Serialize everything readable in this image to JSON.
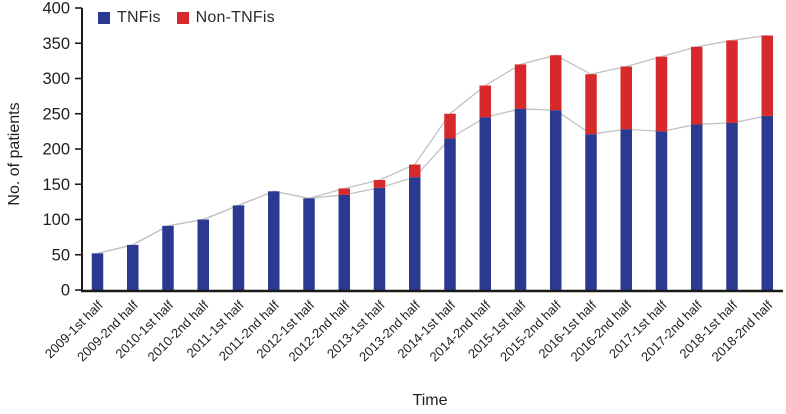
{
  "chart_data": {
    "type": "bar",
    "stacked": true,
    "xlabel": "Time",
    "ylabel": "No. of patients",
    "ylim": [
      0,
      400
    ],
    "ytick_step": 50,
    "grid": false,
    "legend_position": "top-left-inside",
    "categories": [
      "2009-1st half",
      "2009-2nd half",
      "2010-1st half",
      "2010-2nd half",
      "2011-1st half",
      "2011-2nd half",
      "2012-1st half",
      "2012-2nd half",
      "2013-1st half",
      "2013-2nd half",
      "2014-1st half",
      "2014-2nd half",
      "2015-1st half",
      "2015-2nd half",
      "2016-1st half",
      "2016-2nd half",
      "2017-1st half",
      "2017-2nd half",
      "2018-1st half",
      "2018-2nd half"
    ],
    "series": [
      {
        "name": "TNFis",
        "color": "#2b3990",
        "values": [
          52,
          64,
          91,
          100,
          120,
          140,
          130,
          135,
          145,
          160,
          215,
          245,
          257,
          255,
          221,
          228,
          225,
          235,
          237,
          247
        ]
      },
      {
        "name": "Non-TNFis",
        "color": "#d7282c",
        "values": [
          0,
          0,
          0,
          0,
          0,
          0,
          0,
          9,
          11,
          18,
          35,
          45,
          63,
          78,
          85,
          89,
          106,
          110,
          117,
          114
        ]
      }
    ],
    "overlay_lines": [
      {
        "name": "TNFis tops trend line"
      },
      {
        "name": "Stacked total trend line"
      }
    ]
  },
  "colors": {
    "tnfis": "#2b3990",
    "non_tnfis": "#d7282c",
    "trend_line": "#c2c2c2",
    "axis": "#1a1a1a",
    "text": "#1f1f1f"
  }
}
